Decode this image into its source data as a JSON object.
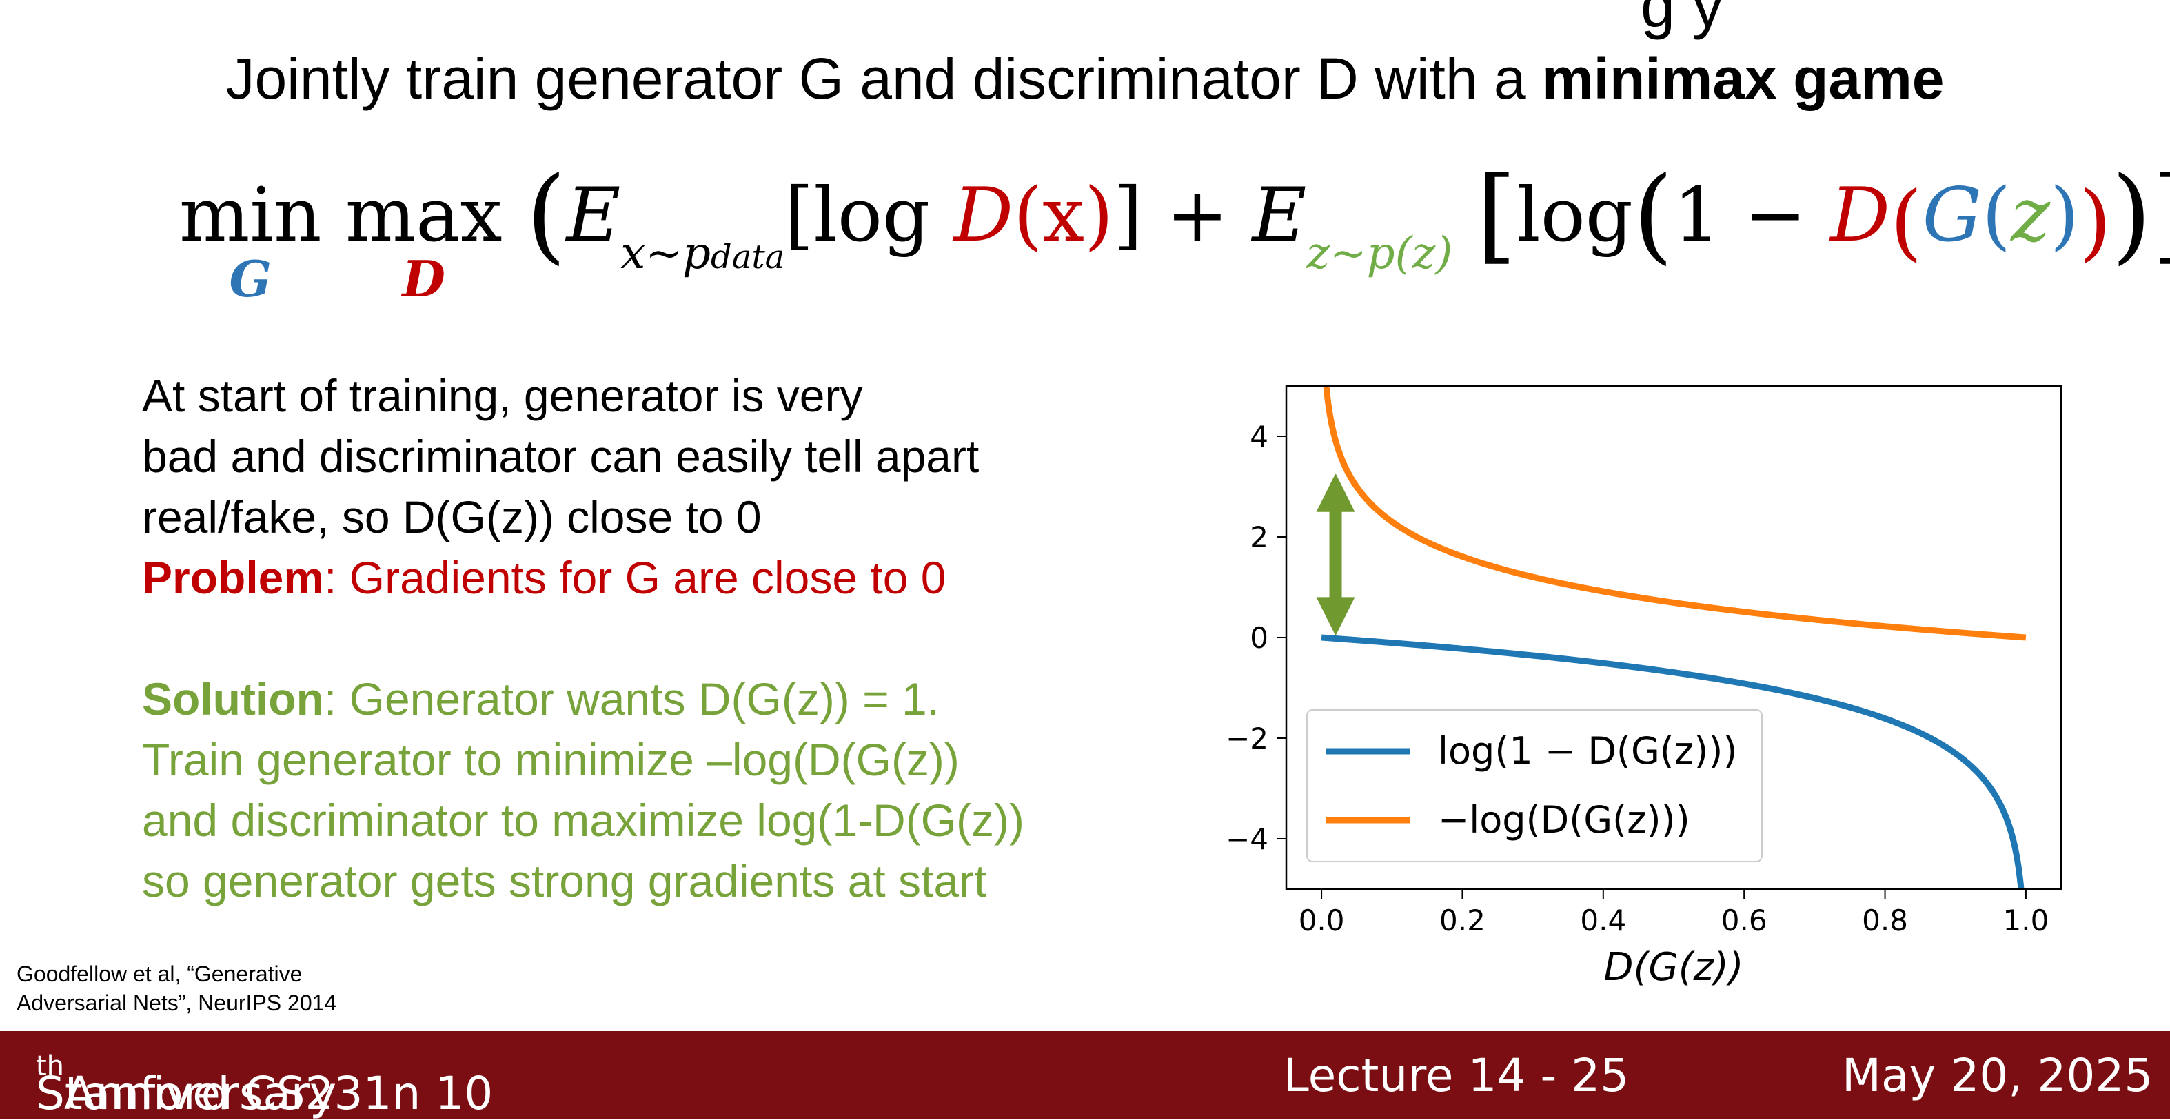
{
  "slide": {
    "title_fragment": "g y",
    "subtitle_prefix": "Jointly train generator G and discriminator D with a ",
    "subtitle_bold": "minimax game"
  },
  "equation": {
    "min": "min",
    "min_sub": "G",
    "max": "max",
    "max_sub": "D",
    "open_paren": "(",
    "E1": "E",
    "E1_sub": "x~p",
    "E1_subsub": "data",
    "bracket1_open": "[",
    "log1": "log ",
    "D1": "D",
    "x_expr": "(x)",
    "bracket1_close": "]",
    "plus": " + ",
    "E2": "E",
    "E2_sub": "z~p(z)",
    "bracket2_open": "[",
    "log2": "log",
    "paren_open": "(",
    "one_minus": "1 − ",
    "D2": "D",
    "D2_paren_open": "(",
    "G": "G",
    "G_paren_open": "(",
    "z": "z",
    "G_paren_close": ")",
    "D2_paren_close": ")",
    "closing": ")]",
    "closing_paren": ")"
  },
  "text": {
    "line1": "At start of training, generator is very",
    "line2": "bad and discriminator can easily tell apart",
    "line3": "real/fake, so D(G(z)) close to 0",
    "problem_label": "Problem",
    "problem_text": ": Gradients for G are close to 0",
    "solution_label": "Solution",
    "solution_text": ": Generator wants D(G(z)) = 1.",
    "sol_line2": "Train generator to minimize –log(D(G(z))",
    "sol_line3": "and discriminator to maximize log(1-D(G(z))",
    "sol_line4": "so generator gets strong gradients at start"
  },
  "citation": {
    "line1": "Goodfellow et al, “Generative",
    "line2": "Adversarial Nets”, NeurIPS 2014"
  },
  "footer": {
    "course": "Stanford CS231n 10",
    "course_sup": "th",
    "course_suffix": " Anniversary",
    "lecture": "Lecture 14 -  25",
    "date": "May 20, 2025"
  },
  "chart_data": {
    "type": "line",
    "xlabel": "D(G(z))",
    "ylabel": "",
    "xlim": [
      -0.05,
      1.05
    ],
    "ylim": [
      -5,
      5
    ],
    "x_ticks": [
      "0.0",
      "0.2",
      "0.4",
      "0.6",
      "0.8",
      "1.0"
    ],
    "y_ticks": [
      "4",
      "2",
      "0",
      "−2",
      "−4"
    ],
    "grid": false,
    "legend_position": "lower-left",
    "series": [
      {
        "name": "log(1 − D(G(z)))",
        "color": "#1f77b4",
        "function": "log(1-x)",
        "x_range": [
          0.0,
          0.995
        ]
      },
      {
        "name": "−log(D(G(z)))",
        "color": "#ff7f0e",
        "function": "-log(x)",
        "x_range": [
          0.0067,
          1.0
        ]
      }
    ],
    "annotation": {
      "type": "double-arrow",
      "color": "#70992f",
      "x": 0.02,
      "y_from": 0.2,
      "y_to": 3.1
    }
  }
}
